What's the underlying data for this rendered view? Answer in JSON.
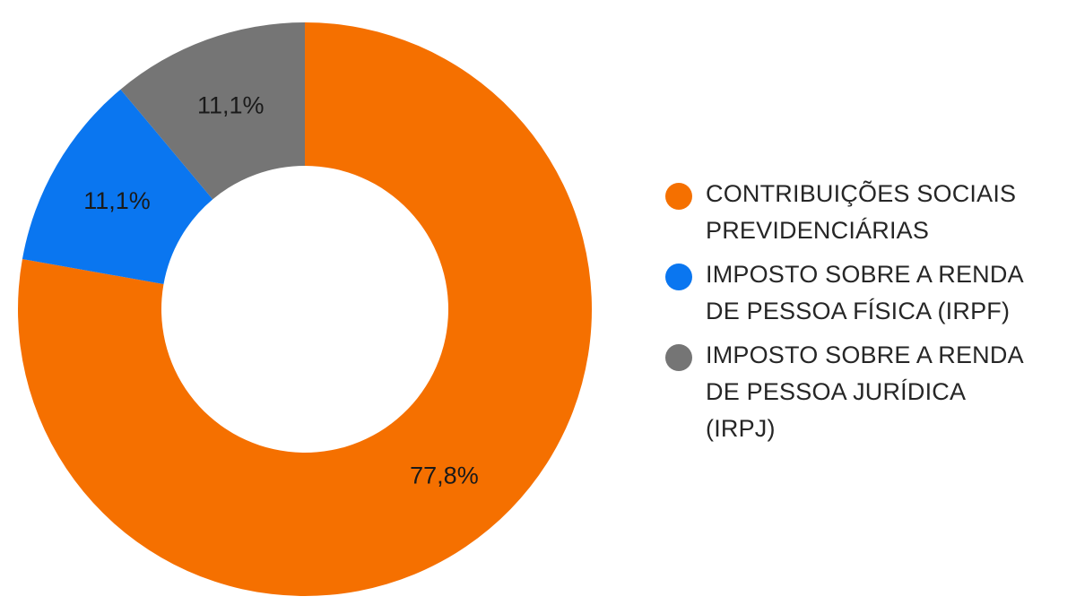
{
  "chart_data": {
    "type": "pie",
    "donut": true,
    "start": "top, clockwise",
    "legend_position": "right",
    "slices": [
      {
        "name": "CONTRIBUIÇÕES SOCIAIS PREVIDENCIÁRIAS",
        "legend_lines": [
          "CONTRIBUIÇÕES SOCIAIS",
          "PREVIDENCIÁRIAS"
        ],
        "value": 77.8,
        "label": "77,8%",
        "color": "#f57000"
      },
      {
        "name": "IMPOSTO SOBRE A RENDA DE PESSOA FÍSICA (IRPF)",
        "legend_lines": [
          "IMPOSTO SOBRE A RENDA",
          "DE PESSOA FÍSICA (IRPF)"
        ],
        "value": 11.1,
        "label": "11,1%",
        "color": "#0a76f0"
      },
      {
        "name": "IMPOSTO SOBRE A RENDA DE PESSOA JURÍDICA (IRPJ)",
        "legend_lines": [
          "IMPOSTO SOBRE A RENDA",
          "DE PESSOA JURÍDICA",
          "(IRPJ)"
        ],
        "value": 11.1,
        "label": "11,1%",
        "color": "#757575"
      }
    ]
  }
}
